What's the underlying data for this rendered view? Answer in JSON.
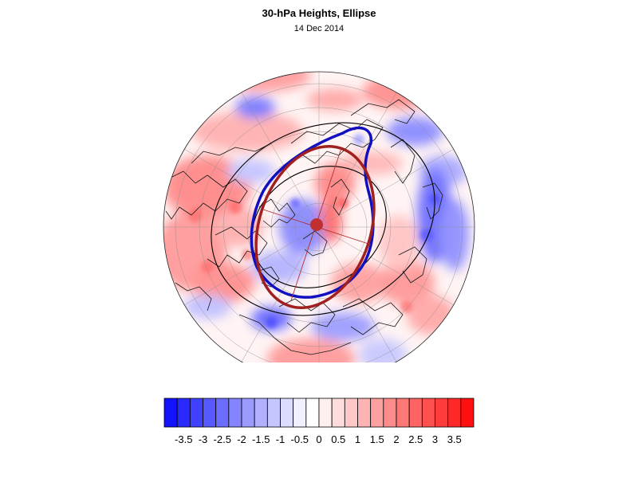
{
  "title": "30-hPa Heights, Ellipse",
  "subtitle": "14 Dec 2014",
  "colorbar": {
    "colors": [
      "#1212ff",
      "#2a2aff",
      "#4040ff",
      "#5858ff",
      "#6c6cff",
      "#8484ff",
      "#9a9aff",
      "#b0b0ff",
      "#c6c6ff",
      "#dcdcff",
      "#f0f0ff",
      "#ffffff",
      "#fff0f0",
      "#ffdcdc",
      "#ffc8c8",
      "#ffb4b4",
      "#ffa0a0",
      "#ff8c8c",
      "#ff7878",
      "#ff6464",
      "#ff5050",
      "#ff3c3c",
      "#ff2828",
      "#ff1010"
    ],
    "tick_labels": [
      "-3.5",
      "-3",
      "-2.5",
      "-2",
      "-1.5",
      "-1",
      "-0.5",
      "0",
      "0.5",
      "1",
      "1.5",
      "2",
      "2.5",
      "3",
      "3.5"
    ]
  },
  "map": {
    "projection": "north-polar-stereographic",
    "anomaly_field": "30-hPa height anomaly (shaded, red positive / blue negative)",
    "contours": [
      {
        "name": "outer-height-contour",
        "color": "#000000"
      },
      {
        "name": "inner-height-contour",
        "color": "#000000"
      }
    ],
    "vortex_edge": {
      "color": "#1010c0"
    },
    "fitted_ellipse": {
      "color": "#a02020"
    },
    "centroid": {
      "color": "#c03030"
    }
  }
}
